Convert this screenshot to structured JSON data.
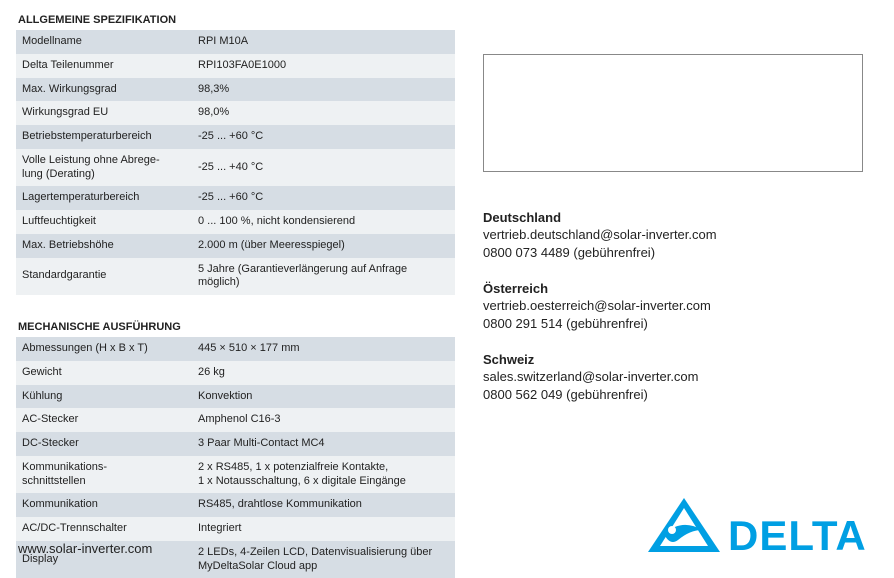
{
  "colors": {
    "row_odd": "#d6dde4",
    "row_even": "#eef1f3",
    "brand": "#009fe3",
    "text": "#222222"
  },
  "section1": {
    "title": "ALLGEMEINE SPEZIFIKATION",
    "rows": [
      {
        "label": "Modellname",
        "value": "RPI M10A"
      },
      {
        "label": "Delta Teilenummer",
        "value": "RPI103FA0E1000"
      },
      {
        "label": "Max. Wirkungsgrad",
        "value": "98,3%"
      },
      {
        "label": "Wirkungsgrad EU",
        "value": "98,0%"
      },
      {
        "label": "Betriebstemperaturbereich",
        "value": "-25 ... +60 °C"
      },
      {
        "label": "Volle Leistung ohne Abrege-\nlung (Derating)",
        "value": "-25 ... +40 °C"
      },
      {
        "label": "Lagertemperaturbereich",
        "value": "-25 ... +60 °C"
      },
      {
        "label": "Luftfeuchtigkeit",
        "value": "0 ... 100 %, nicht kondensierend"
      },
      {
        "label": "Max. Betriebshöhe",
        "value": "2.000 m (über Meeresspiegel)"
      },
      {
        "label": "Standardgarantie",
        "value": "5 Jahre (Garantieverlängerung auf Anfrage möglich)"
      }
    ]
  },
  "section2": {
    "title": "MECHANISCHE AUSFÜHRUNG",
    "rows": [
      {
        "label": "Abmessungen (H x B x T)",
        "value": "445 × 510 × 177 mm"
      },
      {
        "label": "Gewicht",
        "value": "26 kg"
      },
      {
        "label": "Kühlung",
        "value": "Konvektion"
      },
      {
        "label": "AC-Stecker",
        "value": "Amphenol C16-3"
      },
      {
        "label": "DC-Stecker",
        "value": "3 Paar Multi-Contact MC4"
      },
      {
        "label": "Kommunikations-\nschnittstellen",
        "value": "2 x RS485, 1 x potenzialfreie Kontakte,\n1 x Notausschaltung, 6 x digitale Eingänge"
      },
      {
        "label": "Kommunikation",
        "value": "RS485, drahtlose Kommunikation"
      },
      {
        "label": "AC/DC-Trennschalter",
        "value": "Integriert"
      },
      {
        "label": "Display",
        "value": "2 LEDs, 4-Zeilen LCD, Datenvisualisierung über\nMyDeltaSolar Cloud app"
      }
    ]
  },
  "contacts": [
    {
      "country": "Deutschland",
      "email": "vertrieb.deutschland@solar-inverter.com",
      "phone": "0800 073 4489 (gebührenfrei)"
    },
    {
      "country": "Österreich",
      "email": "vertrieb.oesterreich@solar-inverter.com",
      "phone": "0800 291 514 (gebührenfrei)"
    },
    {
      "country": "Schweiz",
      "email": "sales.switzerland@solar-inverter.com",
      "phone": "0800 562 049 (gebührenfrei)"
    }
  ],
  "footer_url": "www.solar-inverter.com",
  "logo_text": "DELTA"
}
